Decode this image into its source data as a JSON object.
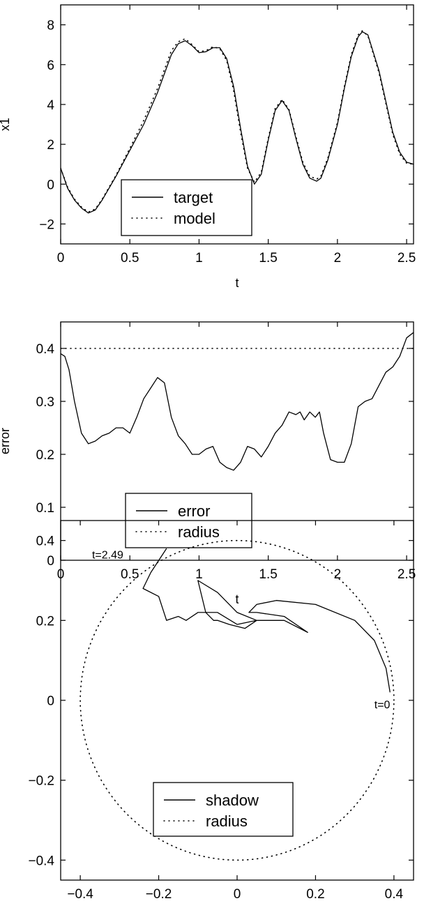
{
  "chart_data": [
    {
      "type": "line",
      "xlabel": "t",
      "ylabel": "x1",
      "xlim": [
        0,
        2.55
      ],
      "ylim": [
        -3,
        9
      ],
      "xticks": [
        "0",
        "0.5",
        "1",
        "1.5",
        "2",
        "2.5"
      ],
      "yticks": [
        "−2",
        "0",
        "2",
        "4",
        "6",
        "8"
      ],
      "legend": {
        "location": "lower-left",
        "entries": [
          "target",
          "model"
        ]
      },
      "series": [
        {
          "name": "target",
          "style": "solid",
          "x": [
            0,
            0.05,
            0.1,
            0.15,
            0.2,
            0.25,
            0.3,
            0.4,
            0.5,
            0.6,
            0.7,
            0.8,
            0.85,
            0.9,
            0.95,
            1.0,
            1.05,
            1.1,
            1.15,
            1.2,
            1.25,
            1.3,
            1.35,
            1.4,
            1.45,
            1.5,
            1.55,
            1.6,
            1.65,
            1.7,
            1.75,
            1.8,
            1.85,
            1.88,
            1.93,
            2.0,
            2.05,
            2.1,
            2.15,
            2.18,
            2.22,
            2.3,
            2.4,
            2.45,
            2.5,
            2.55
          ],
          "values": [
            0.8,
            -0.2,
            -0.8,
            -1.2,
            -1.45,
            -1.3,
            -0.8,
            0.4,
            1.7,
            3.0,
            4.6,
            6.5,
            7.05,
            7.2,
            6.95,
            6.6,
            6.65,
            6.85,
            6.85,
            6.3,
            4.9,
            2.8,
            0.9,
            0.0,
            0.5,
            2.2,
            3.7,
            4.2,
            3.7,
            2.3,
            1.0,
            0.3,
            0.15,
            0.3,
            1.2,
            3.0,
            4.8,
            6.4,
            7.4,
            7.65,
            7.5,
            5.7,
            2.6,
            1.6,
            1.1,
            1.0
          ]
        },
        {
          "name": "model",
          "style": "dotted",
          "x": [
            0,
            0.05,
            0.1,
            0.15,
            0.2,
            0.25,
            0.3,
            0.4,
            0.5,
            0.6,
            0.7,
            0.8,
            0.85,
            0.9,
            0.95,
            1.0,
            1.05,
            1.1,
            1.15,
            1.2,
            1.25,
            1.3,
            1.35,
            1.4,
            1.45,
            1.5,
            1.55,
            1.6,
            1.65,
            1.7,
            1.75,
            1.8,
            1.85,
            1.88,
            1.93,
            2.0,
            2.05,
            2.1,
            2.15,
            2.18,
            2.22,
            2.3,
            2.4,
            2.45,
            2.5,
            2.55
          ],
          "values": [
            0.8,
            -0.15,
            -0.75,
            -1.15,
            -1.4,
            -1.25,
            -0.75,
            0.45,
            1.8,
            3.2,
            4.8,
            6.7,
            7.15,
            7.3,
            7.0,
            6.65,
            6.7,
            6.9,
            6.8,
            6.2,
            4.7,
            2.6,
            0.8,
            0.1,
            0.6,
            2.3,
            3.8,
            4.25,
            3.75,
            2.4,
            1.1,
            0.4,
            0.25,
            0.4,
            1.3,
            3.1,
            4.9,
            6.5,
            7.5,
            7.7,
            7.45,
            5.6,
            2.5,
            1.5,
            1.05,
            1.0
          ]
        }
      ]
    },
    {
      "type": "line",
      "xlabel": "t",
      "ylabel": "error",
      "xlim": [
        0,
        2.55
      ],
      "ylim": [
        0,
        0.45
      ],
      "xticks": [
        "0",
        "0.5",
        "1",
        "1.5",
        "2",
        "2.5"
      ],
      "yticks": [
        "0",
        "0.1",
        "0.2",
        "0.3",
        "0.4"
      ],
      "legend": {
        "location": "lower-left",
        "entries": [
          "error",
          "radius"
        ]
      },
      "series": [
        {
          "name": "error",
          "style": "solid",
          "x": [
            0,
            0.03,
            0.06,
            0.1,
            0.15,
            0.2,
            0.25,
            0.3,
            0.35,
            0.4,
            0.45,
            0.5,
            0.55,
            0.6,
            0.65,
            0.7,
            0.75,
            0.8,
            0.85,
            0.9,
            0.95,
            1.0,
            1.05,
            1.1,
            1.15,
            1.2,
            1.25,
            1.3,
            1.35,
            1.4,
            1.45,
            1.5,
            1.55,
            1.6,
            1.65,
            1.7,
            1.73,
            1.76,
            1.8,
            1.84,
            1.87,
            1.9,
            1.95,
            2.0,
            2.05,
            2.1,
            2.15,
            2.2,
            2.25,
            2.3,
            2.35,
            2.4,
            2.45,
            2.5,
            2.55
          ],
          "values": [
            0.39,
            0.385,
            0.36,
            0.3,
            0.24,
            0.22,
            0.225,
            0.235,
            0.24,
            0.25,
            0.25,
            0.24,
            0.27,
            0.305,
            0.325,
            0.345,
            0.335,
            0.27,
            0.235,
            0.22,
            0.2,
            0.2,
            0.21,
            0.215,
            0.185,
            0.175,
            0.17,
            0.185,
            0.215,
            0.21,
            0.195,
            0.215,
            0.24,
            0.255,
            0.28,
            0.275,
            0.28,
            0.265,
            0.28,
            0.27,
            0.28,
            0.24,
            0.19,
            0.185,
            0.185,
            0.22,
            0.29,
            0.3,
            0.305,
            0.33,
            0.355,
            0.365,
            0.385,
            0.42,
            0.43
          ]
        },
        {
          "name": "radius",
          "style": "dotted",
          "x": [
            0,
            2.55
          ],
          "values": [
            0.4,
            0.4
          ]
        }
      ]
    },
    {
      "type": "line",
      "xlabel": "",
      "ylabel": "",
      "xlim": [
        -0.45,
        0.45
      ],
      "ylim": [
        -0.45,
        0.45
      ],
      "xticks": [
        "−0.4",
        "−0.2",
        "0",
        "0.2",
        "0.4"
      ],
      "yticks": [
        "−0.4",
        "−0.2",
        "0",
        "0.2",
        "0.4"
      ],
      "legend": {
        "location": "lower-center",
        "entries": [
          "shadow",
          "radius"
        ]
      },
      "annotations": [
        {
          "text": "t=2.49",
          "x": -0.37,
          "y": 0.355
        },
        {
          "text": "t=0",
          "x": 0.35,
          "y": -0.02
        }
      ],
      "series": [
        {
          "name": "shadow",
          "style": "solid",
          "x": [
            0.39,
            0.38,
            0.35,
            0.3,
            0.2,
            0.1,
            0.05,
            0.03,
            0.05,
            0.12,
            0.18,
            0.12,
            0.05,
            0.0,
            -0.05,
            -0.1,
            -0.08,
            -0.06,
            -0.05,
            -0.02,
            0.02,
            0.05,
            0.0,
            -0.05,
            -0.1,
            -0.13,
            -0.15,
            -0.18,
            -0.2,
            -0.24,
            -0.22,
            -0.18
          ],
          "y": [
            0.02,
            0.08,
            0.15,
            0.2,
            0.24,
            0.25,
            0.24,
            0.22,
            0.22,
            0.21,
            0.17,
            0.2,
            0.2,
            0.22,
            0.27,
            0.3,
            0.22,
            0.2,
            0.2,
            0.19,
            0.18,
            0.2,
            0.19,
            0.22,
            0.22,
            0.2,
            0.21,
            0.2,
            0.26,
            0.28,
            0.32,
            0.38
          ]
        },
        {
          "name": "radius",
          "style": "dotted",
          "shape": "circle",
          "center": [
            0,
            0
          ],
          "r": 0.4
        }
      ]
    }
  ]
}
